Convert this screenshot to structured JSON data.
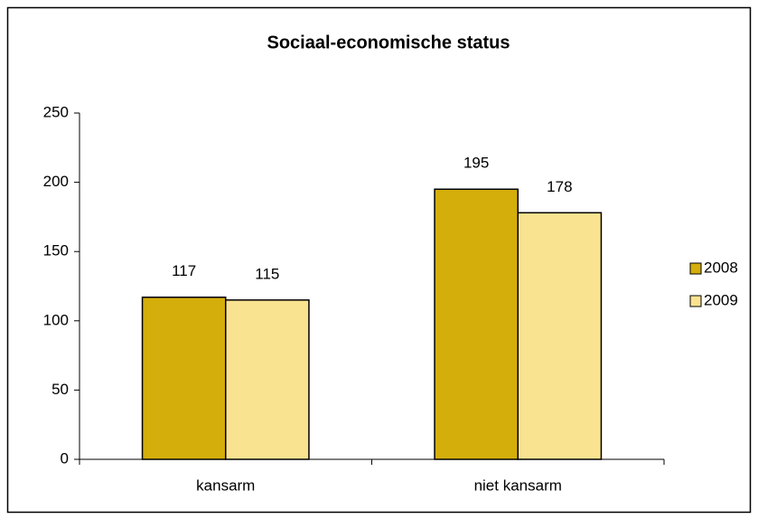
{
  "chart_data": {
    "type": "bar",
    "title": "Sociaal-economische status",
    "categories": [
      "kansarm",
      "niet kansarm"
    ],
    "series": [
      {
        "name": "2008",
        "color": "#d4ae0a",
        "values": [
          117,
          195
        ]
      },
      {
        "name": "2009",
        "color": "#f9e391",
        "values": [
          115,
          178
        ]
      }
    ],
    "ylim": [
      0,
      250
    ],
    "yticks": [
      0,
      50,
      100,
      150,
      200,
      250
    ],
    "grid": false,
    "legend": "right",
    "value_labels_shown": true
  }
}
